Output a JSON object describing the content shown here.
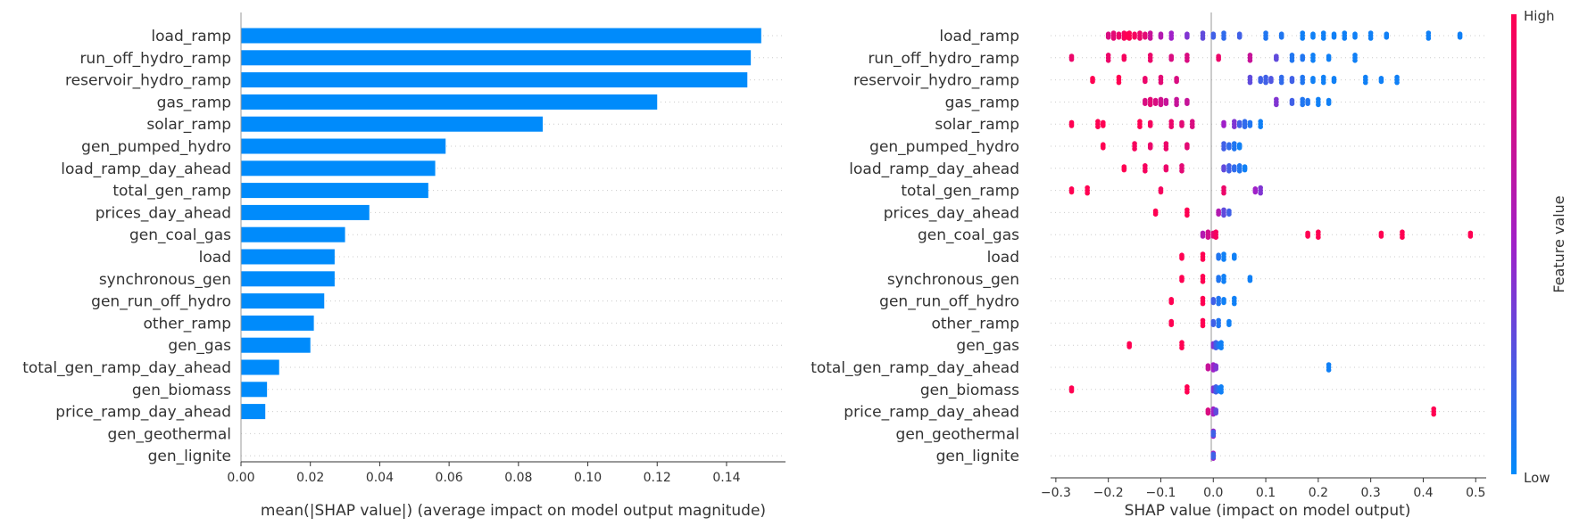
{
  "features": [
    "load_ramp",
    "run_off_hydro_ramp",
    "reservoir_hydro_ramp",
    "gas_ramp",
    "solar_ramp",
    "gen_pumped_hydro",
    "load_ramp_day_ahead",
    "total_gen_ramp",
    "prices_day_ahead",
    "gen_coal_gas",
    "load",
    "synchronous_gen",
    "gen_run_off_hydro",
    "other_ramp",
    "gen_gas",
    "total_gen_ramp_day_ahead",
    "gen_biomass",
    "price_ramp_day_ahead",
    "gen_geothermal",
    "gen_lignite"
  ],
  "colors": {
    "bar": "#008bfb",
    "low": "#008bfb",
    "mid": "#a020c8",
    "high": "#ff0052",
    "axis": "#333333",
    "grid": "#cccccc"
  },
  "chart_data": [
    {
      "type": "bar",
      "orientation": "horizontal",
      "xlabel": "mean(|SHAP value|) (average impact on model output magnitude)",
      "xlim": [
        0.0,
        0.157
      ],
      "xticks": [
        "0.00",
        "0.02",
        "0.04",
        "0.06",
        "0.08",
        "0.10",
        "0.12",
        "0.14"
      ],
      "values": [
        0.15,
        0.147,
        0.146,
        0.12,
        0.087,
        0.059,
        0.056,
        0.054,
        0.037,
        0.03,
        0.027,
        0.027,
        0.024,
        0.021,
        0.02,
        0.011,
        0.0075,
        0.007,
        0.0,
        0.0
      ]
    },
    {
      "type": "scatter",
      "subtype": "beeswarm",
      "xlabel": "SHAP value (impact on model output)",
      "xlim": [
        -0.31,
        0.52
      ],
      "xticks": [
        "−0.3",
        "−0.2",
        "−0.1",
        "0.0",
        "0.1",
        "0.2",
        "0.3",
        "0.4",
        "0.5"
      ],
      "colorbar": {
        "label": "Feature value",
        "high": "High",
        "low": "Low"
      },
      "points": [
        [
          [
            -0.2,
            0.8
          ],
          [
            -0.19,
            0.85
          ],
          [
            -0.18,
            0.9
          ],
          [
            -0.17,
            0.95
          ],
          [
            -0.165,
            1
          ],
          [
            -0.16,
            1
          ],
          [
            -0.15,
            0.95
          ],
          [
            -0.14,
            0.9
          ],
          [
            -0.13,
            0.85
          ],
          [
            -0.12,
            0.7
          ],
          [
            -0.1,
            0.6
          ],
          [
            -0.08,
            0.5
          ],
          [
            -0.05,
            0.4
          ],
          [
            -0.02,
            0.3
          ],
          [
            0.0,
            0.2
          ],
          [
            0.02,
            0.15
          ],
          [
            0.05,
            0.2
          ],
          [
            0.1,
            0.1
          ],
          [
            0.13,
            0.1
          ],
          [
            0.17,
            0.05
          ],
          [
            0.19,
            0.05
          ],
          [
            0.21,
            0.05
          ],
          [
            0.23,
            0.05
          ],
          [
            0.25,
            0.05
          ],
          [
            0.27,
            0.05
          ],
          [
            0.3,
            0.05
          ],
          [
            0.33,
            0.05
          ],
          [
            0.41,
            0.05
          ],
          [
            0.47,
            0.05
          ]
        ],
        [
          [
            -0.27,
            0.9
          ],
          [
            -0.2,
            0.9
          ],
          [
            -0.17,
            0.95
          ],
          [
            -0.12,
            0.9
          ],
          [
            -0.08,
            0.8
          ],
          [
            -0.05,
            0.8
          ],
          [
            0.01,
            0.9
          ],
          [
            0.07,
            0.7
          ],
          [
            0.12,
            0.3
          ],
          [
            0.15,
            0.1
          ],
          [
            0.17,
            0.1
          ],
          [
            0.19,
            0.05
          ],
          [
            0.22,
            0.05
          ],
          [
            0.27,
            0.05
          ]
        ],
        [
          [
            -0.23,
            1
          ],
          [
            -0.18,
            1
          ],
          [
            -0.13,
            0.9
          ],
          [
            -0.1,
            0.85
          ],
          [
            -0.07,
            0.8
          ],
          [
            0.07,
            0.3
          ],
          [
            0.09,
            0.2
          ],
          [
            0.1,
            0.2
          ],
          [
            0.11,
            0.25
          ],
          [
            0.13,
            0.15
          ],
          [
            0.15,
            0.2
          ],
          [
            0.17,
            0.1
          ],
          [
            0.19,
            0.05
          ],
          [
            0.21,
            0.05
          ],
          [
            0.23,
            0.05
          ],
          [
            0.29,
            0.05
          ],
          [
            0.32,
            0.05
          ],
          [
            0.35,
            0.05
          ]
        ],
        [
          [
            -0.13,
            0.8
          ],
          [
            -0.12,
            0.85
          ],
          [
            -0.11,
            0.8
          ],
          [
            -0.1,
            0.75
          ],
          [
            -0.09,
            0.7
          ],
          [
            -0.07,
            0.7
          ],
          [
            -0.05,
            0.7
          ],
          [
            0.12,
            0.4
          ],
          [
            0.15,
            0.2
          ],
          [
            0.17,
            0.1
          ],
          [
            0.18,
            0.1
          ],
          [
            0.2,
            0.05
          ],
          [
            0.22,
            0.05
          ]
        ],
        [
          [
            -0.27,
            1
          ],
          [
            -0.22,
            1
          ],
          [
            -0.21,
            1
          ],
          [
            -0.14,
            1
          ],
          [
            -0.12,
            0.95
          ],
          [
            -0.08,
            0.9
          ],
          [
            -0.06,
            0.85
          ],
          [
            -0.04,
            0.8
          ],
          [
            0.02,
            0.5
          ],
          [
            0.04,
            0.4
          ],
          [
            0.05,
            0.2
          ],
          [
            0.06,
            0.15
          ],
          [
            0.07,
            0.1
          ],
          [
            0.09,
            0.05
          ]
        ],
        [
          [
            -0.21,
            1
          ],
          [
            -0.15,
            0.95
          ],
          [
            -0.12,
            0.9
          ],
          [
            -0.09,
            0.9
          ],
          [
            -0.05,
            0.85
          ],
          [
            0.02,
            0.2
          ],
          [
            0.03,
            0.15
          ],
          [
            0.04,
            0.1
          ],
          [
            0.05,
            0.05
          ]
        ],
        [
          [
            -0.17,
            1
          ],
          [
            -0.13,
            0.95
          ],
          [
            -0.09,
            0.9
          ],
          [
            -0.06,
            0.85
          ],
          [
            0.02,
            0.3
          ],
          [
            0.03,
            0.2
          ],
          [
            0.04,
            0.15
          ],
          [
            0.05,
            0.1
          ],
          [
            0.06,
            0.05
          ]
        ],
        [
          [
            -0.27,
            1
          ],
          [
            -0.24,
            1
          ],
          [
            -0.1,
            0.95
          ],
          [
            0.02,
            0.9
          ],
          [
            0.08,
            0.5
          ],
          [
            0.09,
            0.4
          ]
        ],
        [
          [
            -0.11,
            1
          ],
          [
            -0.05,
            1
          ],
          [
            0.01,
            0.6
          ],
          [
            0.02,
            0.3
          ],
          [
            0.03,
            0.2
          ]
        ],
        [
          [
            -0.02,
            0.6
          ],
          [
            -0.01,
            0.75
          ],
          [
            0.0,
            0.85
          ],
          [
            0.005,
            0.95
          ],
          [
            0.18,
            1
          ],
          [
            0.2,
            1
          ],
          [
            0.32,
            1
          ],
          [
            0.36,
            1
          ],
          [
            0.49,
            1
          ]
        ],
        [
          [
            -0.06,
            1
          ],
          [
            -0.02,
            1
          ],
          [
            0.01,
            0.1
          ],
          [
            0.02,
            0.05
          ],
          [
            0.04,
            0.05
          ]
        ],
        [
          [
            -0.06,
            1
          ],
          [
            -0.02,
            1
          ],
          [
            0.01,
            0.1
          ],
          [
            0.02,
            0.05
          ],
          [
            0.07,
            0.05
          ]
        ],
        [
          [
            -0.08,
            1
          ],
          [
            -0.02,
            1
          ],
          [
            0.0,
            0.2
          ],
          [
            0.01,
            0.1
          ],
          [
            0.02,
            0.05
          ],
          [
            0.04,
            0.05
          ]
        ],
        [
          [
            -0.08,
            1
          ],
          [
            -0.02,
            1
          ],
          [
            0.0,
            0.2
          ],
          [
            0.01,
            0.1
          ],
          [
            0.03,
            0.05
          ]
        ],
        [
          [
            -0.16,
            1
          ],
          [
            -0.06,
            1
          ],
          [
            0.0,
            0.4
          ],
          [
            0.005,
            0.2
          ],
          [
            0.01,
            0.1
          ],
          [
            0.015,
            0.05
          ]
        ],
        [
          [
            -0.01,
            0.7
          ],
          [
            0.0,
            0.5
          ],
          [
            0.005,
            0.4
          ],
          [
            0.22,
            0.05
          ]
        ],
        [
          [
            -0.27,
            1
          ],
          [
            -0.05,
            1
          ],
          [
            0.0,
            0.4
          ],
          [
            0.005,
            0.2
          ],
          [
            0.01,
            0.1
          ],
          [
            0.015,
            0.05
          ]
        ],
        [
          [
            -0.01,
            0.8
          ],
          [
            0.0,
            0.5
          ],
          [
            0.005,
            0.3
          ],
          [
            0.42,
            1
          ]
        ],
        [
          [
            0.0,
            0.8
          ],
          [
            0.0,
            0.5
          ],
          [
            0.0,
            0.2
          ]
        ],
        [
          [
            0.0,
            0.8
          ],
          [
            0.0,
            0.5
          ],
          [
            0.0,
            0.2
          ]
        ]
      ]
    }
  ]
}
